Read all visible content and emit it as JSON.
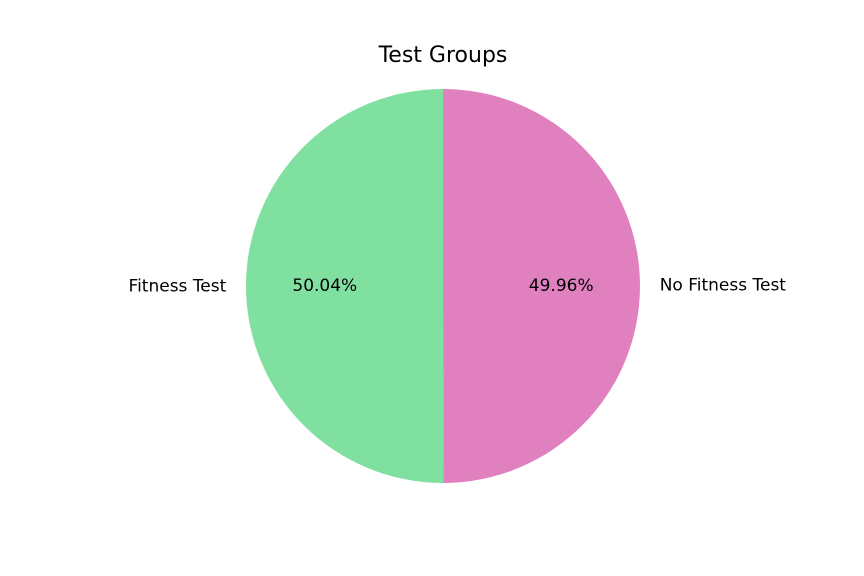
{
  "chart_data": {
    "type": "pie",
    "title": "Test Groups",
    "start_angle_deg": 90,
    "direction": "counterclockwise",
    "slices": [
      {
        "label": "Fitness Test",
        "value": 50.04,
        "pct_label": "50.04%",
        "color": "#80e0a0"
      },
      {
        "label": "No Fitness Test",
        "value": 49.96,
        "pct_label": "49.96%",
        "color": "#e080be"
      }
    ]
  }
}
